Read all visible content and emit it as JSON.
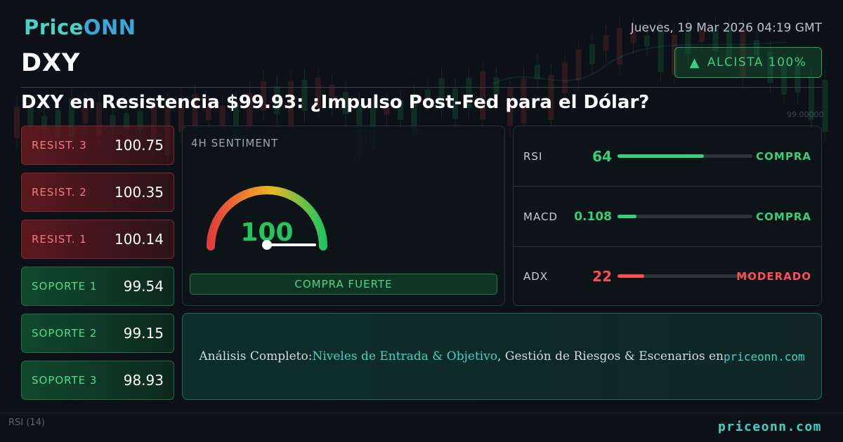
{
  "brand": {
    "name_a": "Price",
    "name_b": "ONN"
  },
  "ticker": "DXY",
  "datetime": "Jueves, 19 Mar 2026 04:19 GMT",
  "trend": {
    "label": "ALCISTA 100%",
    "icon": "triangle-up-icon"
  },
  "headline": "DXY en Resistencia $99.93: ¿Impulso Post-Fed para el Dólar?",
  "levels": {
    "resist3": {
      "label": "RESIST. 3",
      "value": "100.75"
    },
    "resist2": {
      "label": "RESIST. 2",
      "value": "100.35"
    },
    "resist1": {
      "label": "RESIST. 1",
      "value": "100.14"
    },
    "support1": {
      "label": "SOPORTE 1",
      "value": "99.54"
    },
    "support2": {
      "label": "SOPORTE 2",
      "value": "99.15"
    },
    "support3": {
      "label": "SOPORTE 3",
      "value": "98.93"
    }
  },
  "sentiment": {
    "title": "4H SENTIMENT",
    "score": "100",
    "score_fraction": 1.0,
    "signal": "COMPRA FUERTE"
  },
  "indicators": {
    "rsi": {
      "name": "RSI",
      "value": "64",
      "fill_fraction": 0.64,
      "signal": "COMPRA",
      "color": "#35d07a"
    },
    "macd": {
      "name": "MACD",
      "value": "0.108",
      "fill_fraction": 0.14,
      "signal": "COMPRA",
      "color": "#35d07a"
    },
    "adx": {
      "name": "ADX",
      "value": "22",
      "fill_fraction": 0.2,
      "signal": "MODERADO",
      "color": "#ff4d52"
    }
  },
  "cta": {
    "part1": "Análisis Completo: ",
    "part2": "Niveles de Entrada & Objetivo",
    "part3": ", Gestión de Riesgos & Escenarios en ",
    "part4": "priceonn.com"
  },
  "background": {
    "price_label": "99.00000",
    "indicator_label": "RSI",
    "indicator_period": "(14)"
  },
  "footer": "priceonn.com"
}
